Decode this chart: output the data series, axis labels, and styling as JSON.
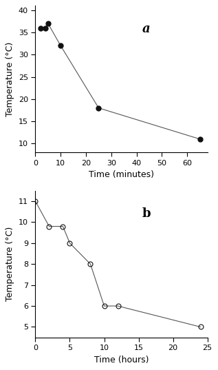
{
  "panel_a": {
    "x": [
      2,
      4,
      5,
      10,
      25,
      65
    ],
    "y": [
      36,
      36,
      37,
      32,
      18,
      11
    ],
    "xlabel": "Time (minutes)",
    "ylabel": "Temperature (°C)",
    "xlim": [
      0,
      68
    ],
    "ylim": [
      8,
      41
    ],
    "xticks": [
      0,
      10,
      20,
      30,
      40,
      50,
      60
    ],
    "yticks": [
      10,
      15,
      20,
      25,
      30,
      35,
      40
    ],
    "label": "a",
    "label_italic": true,
    "marker_symbol": "o",
    "marker_filled": true,
    "line_color": "#555555",
    "marker_color": "#111111"
  },
  "panel_b": {
    "x": [
      0,
      2,
      4,
      5,
      8,
      10,
      12,
      24
    ],
    "y": [
      11,
      9.8,
      9.8,
      9.0,
      8.0,
      6.0,
      6.0,
      5.0
    ],
    "xlabel": "Time (hours)",
    "ylabel": "Temperature (°C)",
    "xlim": [
      0,
      25
    ],
    "ylim": [
      4.5,
      11.5
    ],
    "xticks": [
      0,
      5,
      10,
      15,
      20,
      25
    ],
    "yticks": [
      5,
      6,
      7,
      8,
      9,
      10,
      11
    ],
    "label": "b",
    "label_italic": false,
    "marker_symbol": "o",
    "marker_filled": false,
    "line_color": "#555555",
    "marker_color": "#111111"
  },
  "background_color": "#ffffff",
  "font_size_label": 9,
  "font_size_tick": 8,
  "font_size_annot": 13,
  "line_width": 0.8,
  "marker_size_a": 5,
  "marker_size_b": 5
}
